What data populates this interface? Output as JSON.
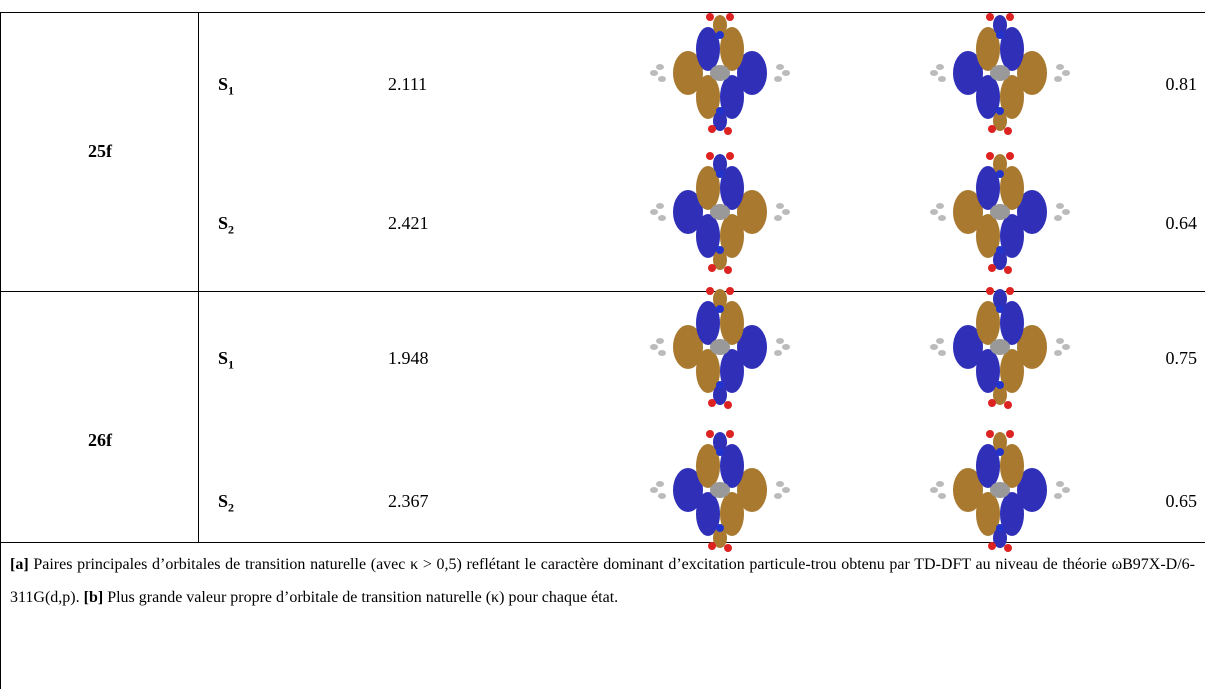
{
  "table": {
    "rows": [
      {
        "compound": "25f",
        "states": [
          {
            "state": "S",
            "index": "1",
            "energy": "2.111",
            "kappa": "0.81"
          },
          {
            "state": "S",
            "index": "2",
            "energy": "2.421",
            "kappa": "0.64"
          }
        ]
      },
      {
        "compound": "26f",
        "states": [
          {
            "state": "S",
            "index": "1",
            "energy": "1.948",
            "kappa": "0.75"
          },
          {
            "state": "S",
            "index": "2",
            "energy": "2.367",
            "kappa": "0.65"
          }
        ]
      }
    ]
  },
  "footnote": {
    "a_marker": "[a]",
    "a_text": "Paires principales d’orbitales de transition naturelle (avec κ > 0,5) reflétant le caractère dominant d’excitation particule-trou obtenu par TD-DFT au niveau de théorie ωB97X-D/6-311G(d,p).",
    "b_marker": "[b]",
    "b_text": "Plus grande valeur propre d’orbitale de transition naturelle (κ) pour chaque état."
  }
}
